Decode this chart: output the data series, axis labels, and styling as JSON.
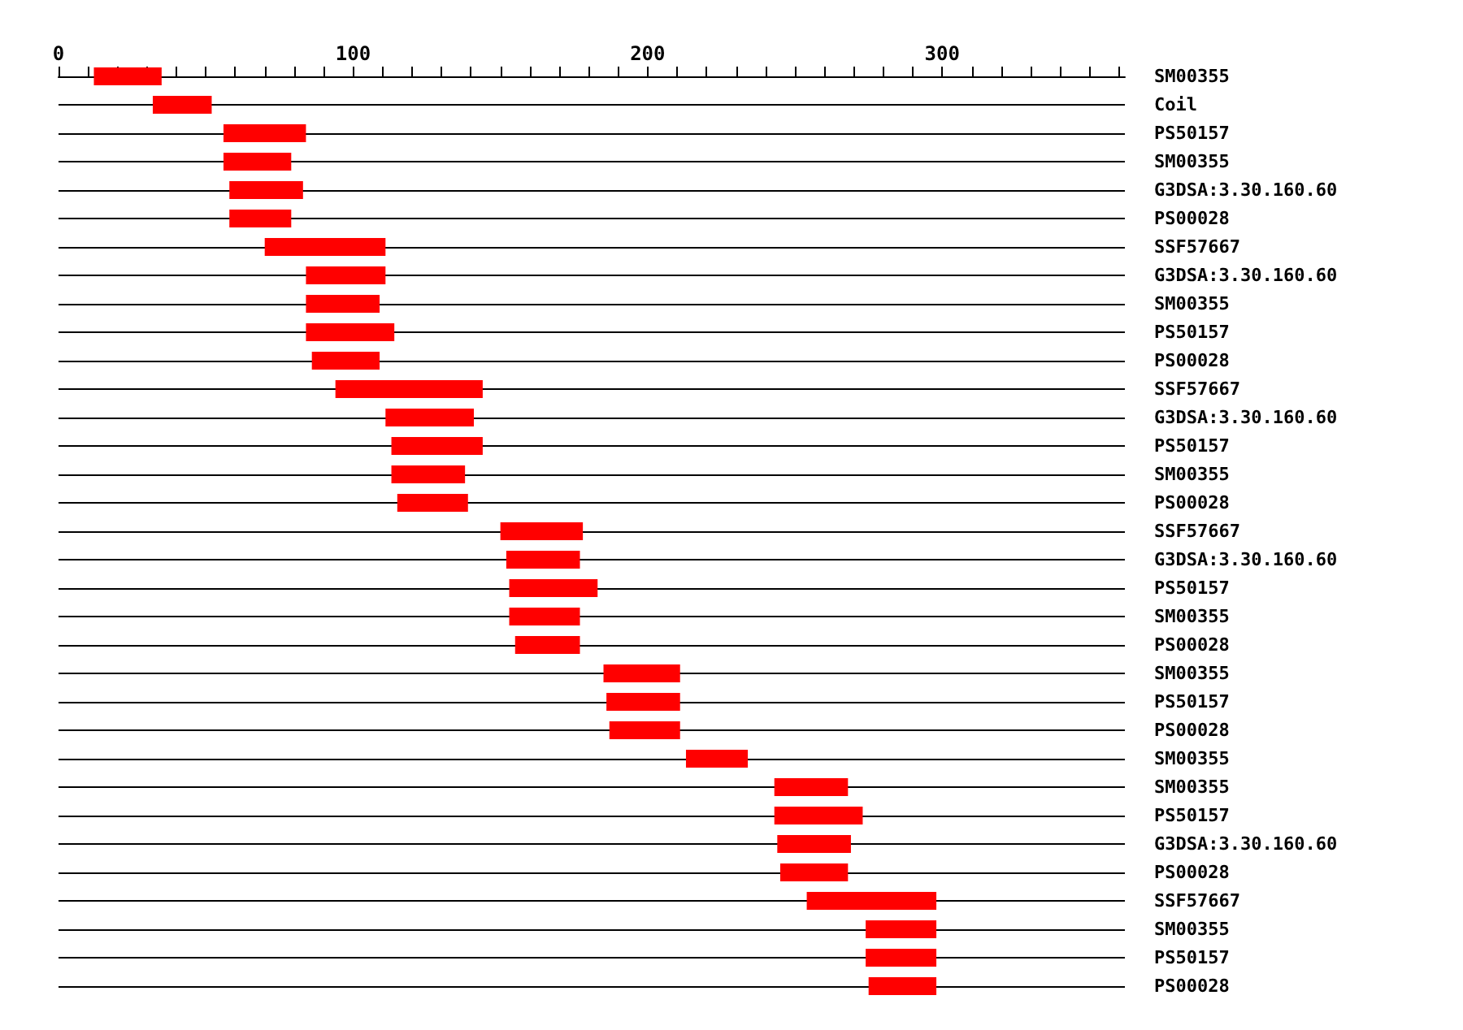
{
  "chart_data": {
    "type": "bar",
    "orientation": "horizontal",
    "color": "#ff0000",
    "grid": "y",
    "categories": [
      "SM00355",
      "Coil",
      "PS50157",
      "SM00355",
      "G3DSA:3.30.160.60",
      "PS00028",
      "SSF57667",
      "G3DSA:3.30.160.60",
      "SM00355",
      "PS50157",
      "PS00028",
      "SSF57667",
      "G3DSA:3.30.160.60",
      "PS50157",
      "SM00355",
      "PS00028",
      "SSF57667",
      "G3DSA:3.30.160.60",
      "PS50157",
      "SM00355",
      "PS00028",
      "SM00355",
      "PS50157",
      "PS00028",
      "SM00355",
      "SM00355",
      "PS50157",
      "G3DSA:3.30.160.60",
      "PS00028",
      "SSF57667",
      "SM00355",
      "PS50157",
      "PS00028"
    ],
    "base": [
      12,
      32,
      56,
      56,
      58,
      58,
      70,
      84,
      84,
      84,
      86,
      94,
      111,
      113,
      113,
      115,
      150,
      152,
      153,
      153,
      155,
      185,
      186,
      187,
      213,
      243,
      243,
      244,
      245,
      254,
      274,
      274,
      275
    ],
    "values": [
      23,
      20,
      28,
      23,
      25,
      21,
      41,
      27,
      25,
      30,
      23,
      50,
      30,
      31,
      25,
      24,
      28,
      25,
      30,
      24,
      22,
      26,
      25,
      24,
      21,
      25,
      30,
      25,
      23,
      44,
      24,
      24,
      23
    ],
    "xlim": [
      0,
      362
    ],
    "xticks": [
      0,
      {
        "value": 10,
        "label": null
      },
      {
        "value": 20,
        "label": null
      },
      {
        "value": 30,
        "label": null
      },
      {
        "value": 40,
        "label": null
      },
      {
        "value": 50,
        "label": null
      },
      {
        "value": 60,
        "label": null
      },
      {
        "value": 70,
        "label": null
      },
      {
        "value": 80,
        "label": null
      },
      {
        "value": 90,
        "label": null
      },
      100,
      {
        "value": 110,
        "label": null
      },
      {
        "value": 120,
        "label": null
      },
      {
        "value": 130,
        "label": null
      },
      {
        "value": 140,
        "label": null
      },
      {
        "value": 150,
        "label": null
      },
      {
        "value": 160,
        "label": null
      },
      {
        "value": 170,
        "label": null
      },
      {
        "value": 180,
        "label": null
      },
      {
        "value": 190,
        "label": null
      },
      200,
      {
        "value": 210,
        "label": null
      },
      {
        "value": 220,
        "label": null
      },
      {
        "value": 230,
        "label": null
      },
      {
        "value": 240,
        "label": null
      },
      {
        "value": 250,
        "label": null
      },
      {
        "value": 260,
        "label": null
      },
      {
        "value": 270,
        "label": null
      },
      {
        "value": 280,
        "label": null
      },
      {
        "value": 290,
        "label": null
      },
      300,
      {
        "value": 310,
        "label": null
      },
      {
        "value": 320,
        "label": null
      },
      {
        "value": 330,
        "label": null
      },
      {
        "value": 340,
        "label": null
      },
      {
        "value": 350,
        "label": null
      },
      {
        "value": 360,
        "label": null
      }
    ]
  }
}
